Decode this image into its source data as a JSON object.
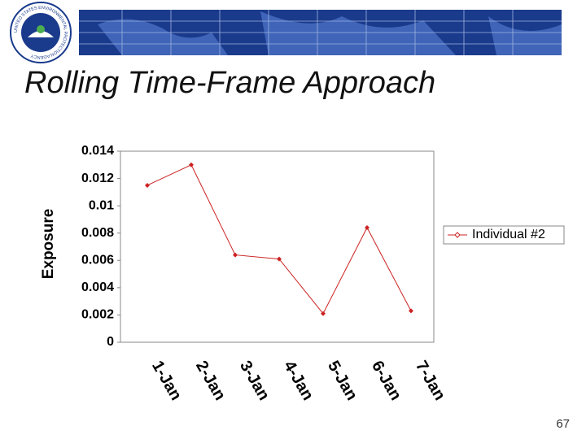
{
  "slide": {
    "logo_text": "UNITED STATES ENVIRONMENTAL PROTECTION AGENCY",
    "page_number": "67"
  },
  "chart_data": {
    "type": "line",
    "title": "Rolling Time-Frame Approach",
    "y_label": "Exposure",
    "categories": [
      "1-Jan",
      "2-Jan",
      "3-Jan",
      "4-Jan",
      "5-Jan",
      "6-Jan",
      "7-Jan"
    ],
    "series": [
      {
        "name": "Individual #2",
        "color": "#cc2222",
        "values": [
          0.0115,
          0.013,
          0.0064,
          0.0061,
          0.0021,
          0.0084,
          0.0023
        ]
      }
    ],
    "ylim": [
      0,
      0.014
    ],
    "yticks": [
      0,
      0.002,
      0.004,
      0.006,
      0.008,
      0.01,
      0.012,
      0.014
    ],
    "legend": "right"
  }
}
